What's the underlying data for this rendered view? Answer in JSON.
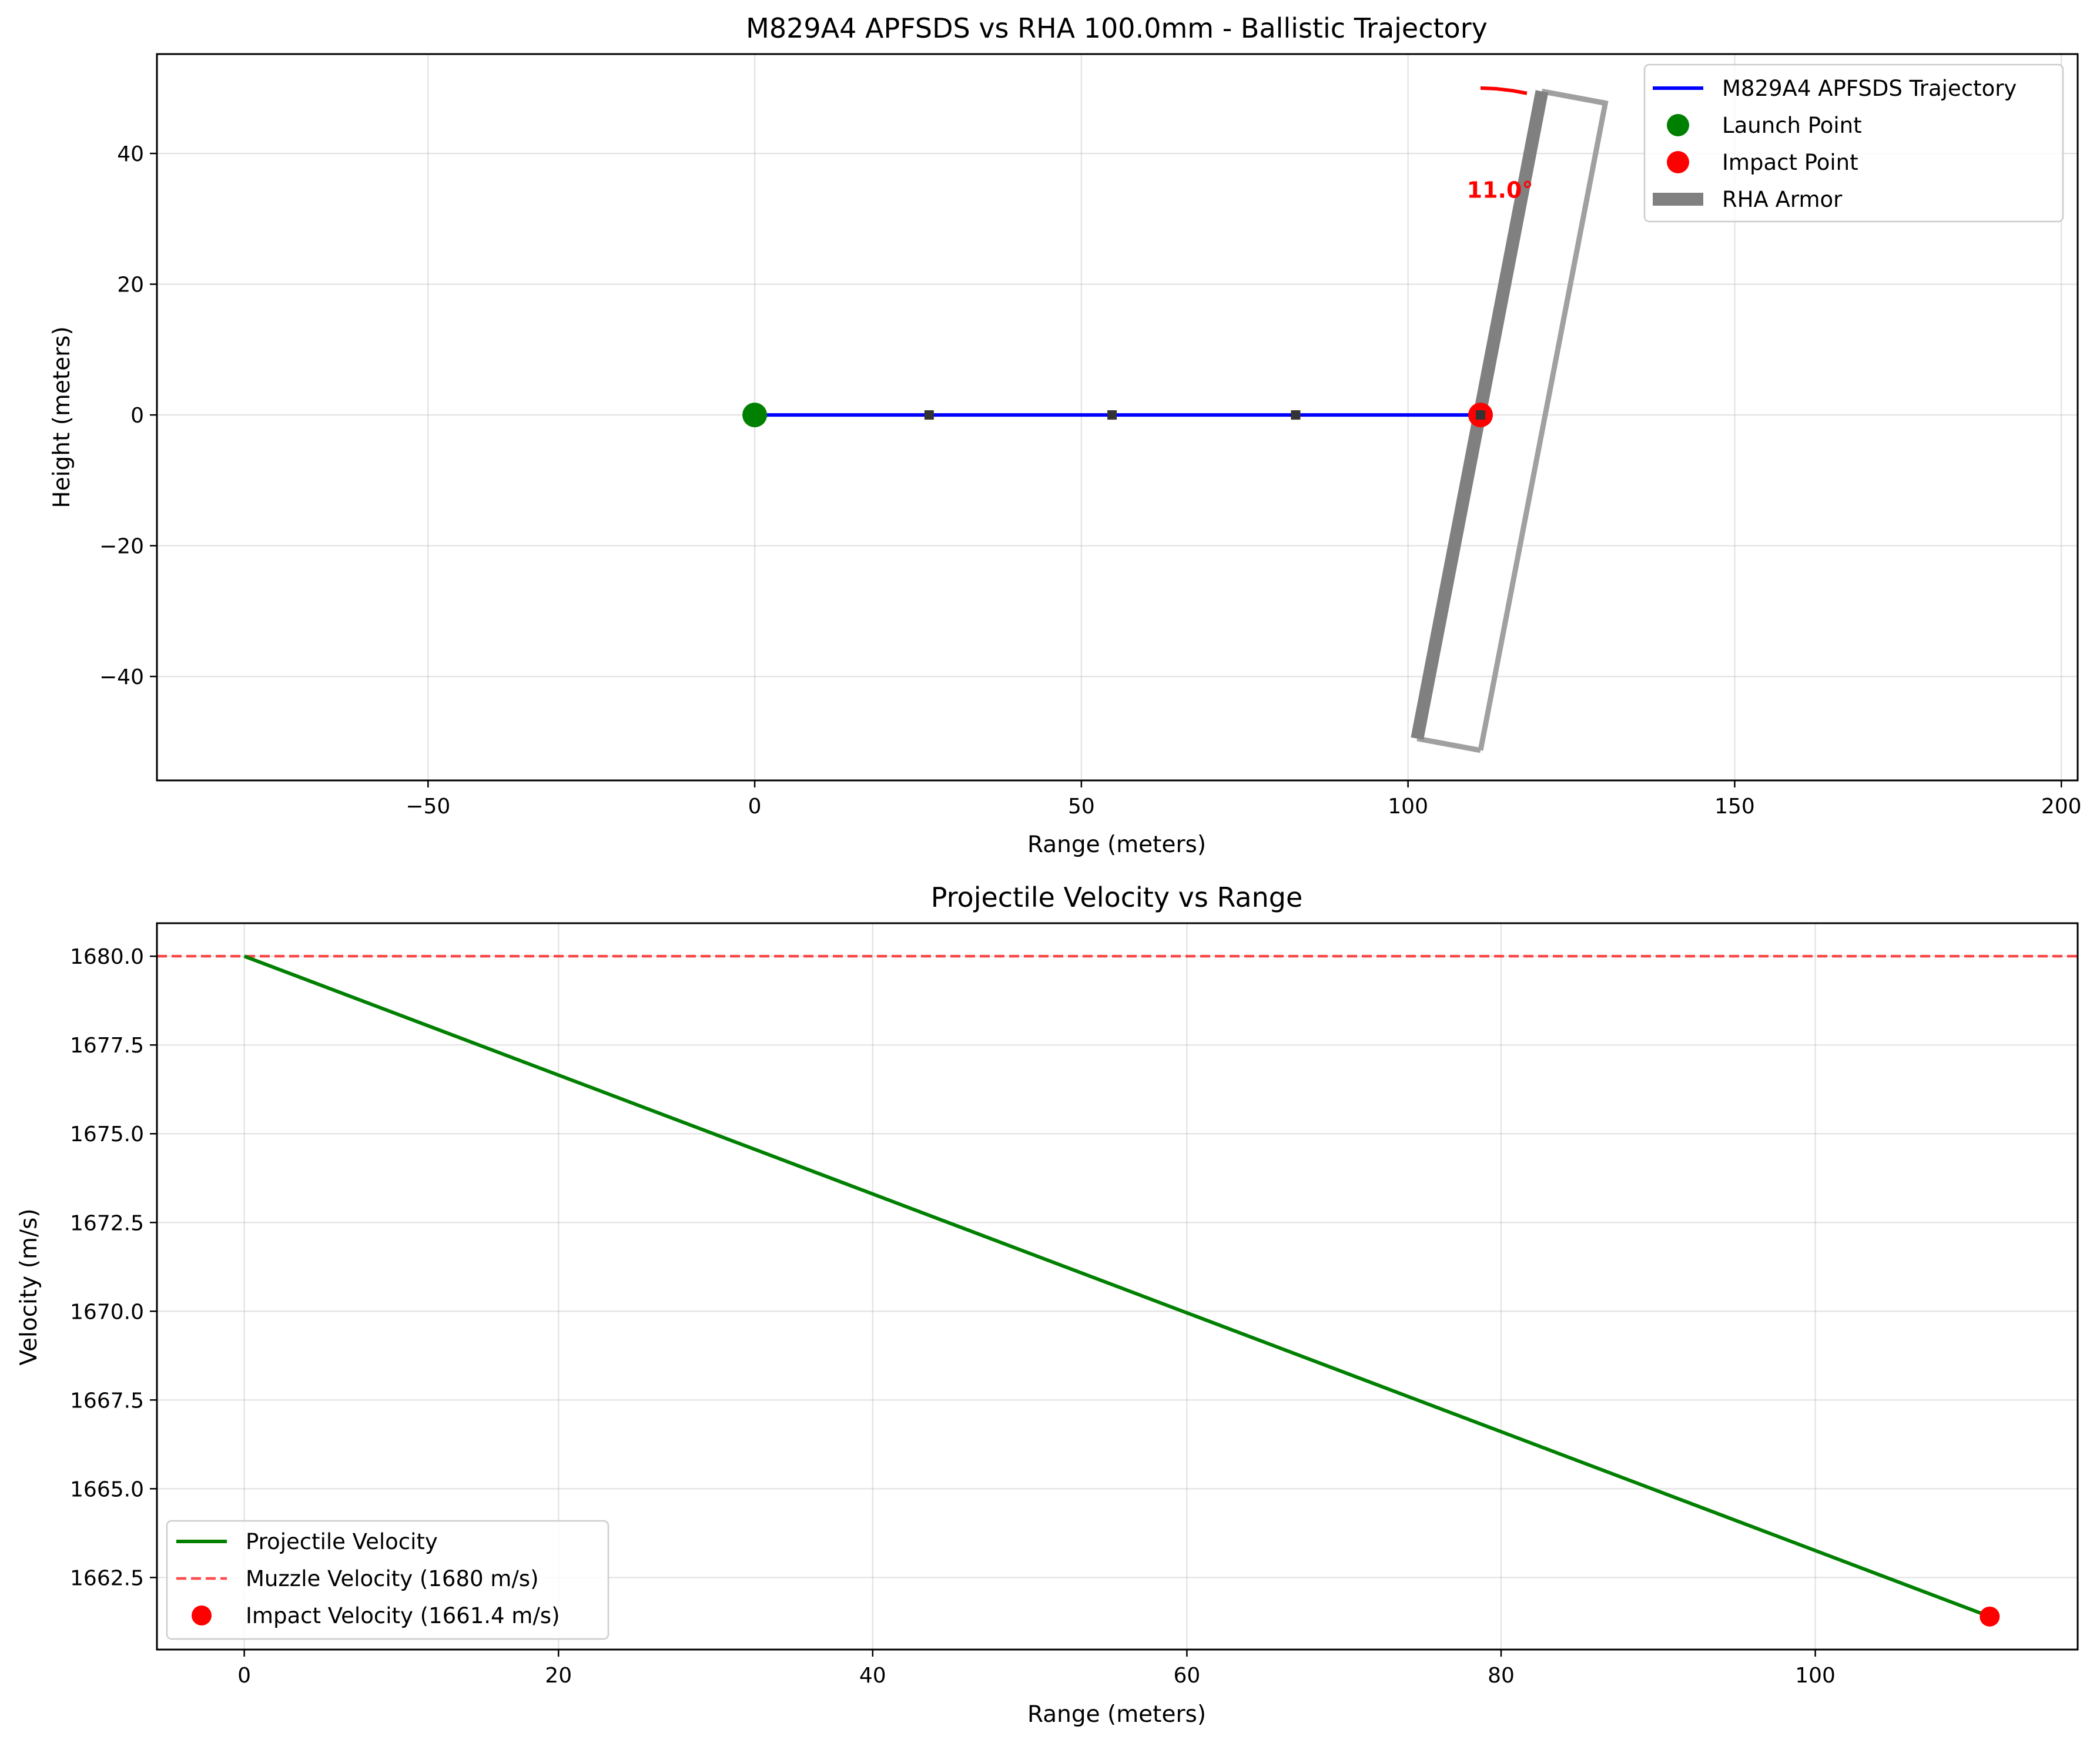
{
  "chart_data": [
    {
      "type": "line",
      "title": "M829A4 APFSDS vs RHA 100.0mm - Ballistic Trajectory",
      "xlabel": "Range (meters)",
      "ylabel": "Height (meters)",
      "xlim": [
        -91.5,
        202.5
      ],
      "ylim": [
        -55.9,
        55.2
      ],
      "xticks": [
        -50,
        0,
        50,
        100,
        150,
        200
      ],
      "xtick_labels": [
        "−50",
        "0",
        "50",
        "100",
        "150",
        "200"
      ],
      "yticks": [
        -40,
        -20,
        0,
        20,
        40
      ],
      "ytick_labels": [
        "−40",
        "−20",
        "0",
        "20",
        "40"
      ],
      "grid": true,
      "legend_position": "upper right",
      "series": [
        {
          "name": "M829A4 APFSDS Trajectory",
          "color": "#0000ff",
          "x": [
            0,
            111.1
          ],
          "y": [
            0,
            0
          ]
        },
        {
          "name": "Launch Point",
          "color": "#008000",
          "x": [
            0
          ],
          "y": [
            0
          ]
        },
        {
          "name": "Impact Point",
          "color": "#ff0000",
          "x": [
            111.1
          ],
          "y": [
            0
          ]
        },
        {
          "name": "RHA Armor",
          "color": "#808080",
          "x": [
            101.4,
            120.5
          ],
          "y": [
            -49.5,
            49.5
          ]
        }
      ],
      "trajectory_markers": {
        "color": "#333333",
        "x": [
          26.7,
          54.7,
          82.8,
          111.1
        ],
        "y": [
          0,
          0,
          0,
          0
        ]
      },
      "armor_outline": {
        "color": "#a0a0a0",
        "x": [
          101.4,
          111.1,
          130.2,
          120.5
        ],
        "y": [
          -49.5,
          -51.3,
          47.7,
          49.5
        ]
      },
      "angle_arc": {
        "color": "#ff0000",
        "x": [
          111.1,
          113.5,
          116.0,
          118.2
        ],
        "y": [
          50.0,
          49.9,
          49.6,
          49.2
        ]
      },
      "annotations": [
        {
          "text": "11.0°",
          "x": 109.0,
          "y": 34.5,
          "color": "#ff0000",
          "bold": true
        }
      ]
    },
    {
      "type": "line",
      "title": "Projectile Velocity vs Range",
      "xlabel": "Range (meters)",
      "ylabel": "Velocity (m/s)",
      "xlim": [
        -5.56,
        116.7
      ],
      "ylim": [
        1660.47,
        1680.93
      ],
      "xticks": [
        0,
        20,
        40,
        60,
        80,
        100
      ],
      "xtick_labels": [
        "0",
        "20",
        "40",
        "60",
        "80",
        "100"
      ],
      "yticks": [
        1662.5,
        1665.0,
        1667.5,
        1670.0,
        1672.5,
        1675.0,
        1677.5,
        1680.0
      ],
      "ytick_labels": [
        "1662.5",
        "1665.0",
        "1667.5",
        "1670.0",
        "1672.5",
        "1675.0",
        "1677.5",
        "1680.0"
      ],
      "grid": true,
      "legend_position": "lower left",
      "series": [
        {
          "name": "Projectile Velocity",
          "color": "#008000",
          "style": "solid",
          "x": [
            0,
            111.1
          ],
          "y": [
            1680.0,
            1661.4
          ]
        },
        {
          "name": "Muzzle Velocity (1680 m/s)",
          "color": "#ff0000",
          "style": "dashed",
          "y": 1680.0
        },
        {
          "name": "Impact Velocity (1661.4 m/s)",
          "color": "#ff0000",
          "style": "marker",
          "x": [
            111.1
          ],
          "y": [
            1661.4
          ]
        }
      ]
    }
  ]
}
